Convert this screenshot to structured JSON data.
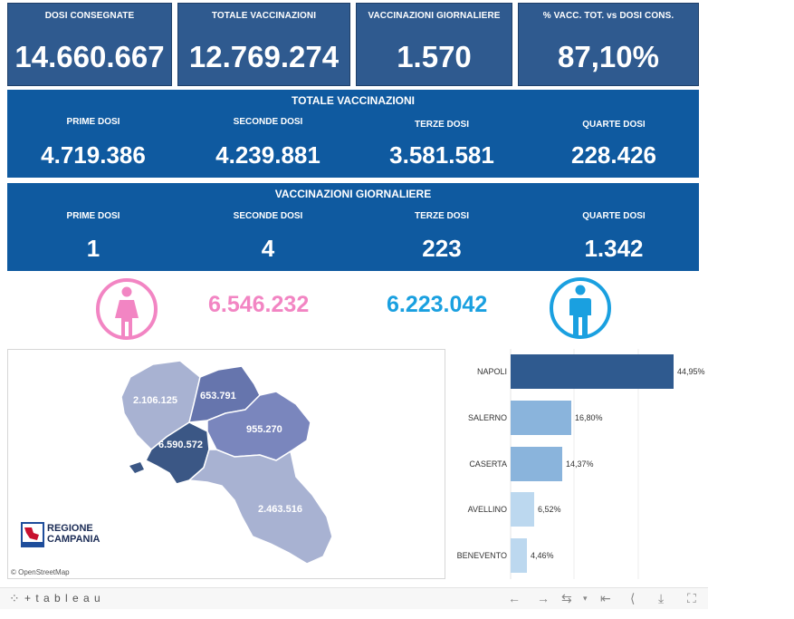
{
  "kpis": [
    {
      "label": "DOSI  CONSEGNATE",
      "value": "14.660.667"
    },
    {
      "label": "TOTALE VACCINAZIONI",
      "value": "12.769.274"
    },
    {
      "label": "VACCINAZIONI GIORNALIERE",
      "value": "1.570"
    },
    {
      "label": "% VACC. TOT. vs DOSI CONS.",
      "value": "87,10%"
    }
  ],
  "totale": {
    "title": "TOTALE VACCINAZIONI",
    "cols": [
      {
        "label": "PRIME DOSI",
        "value": "4.719.386"
      },
      {
        "label": "SECONDE DOSI",
        "value": "4.239.881"
      },
      {
        "label": "TERZE DOSI",
        "value": "3.581.581"
      },
      {
        "label": "QUARTE DOSI",
        "value": "228.426"
      }
    ]
  },
  "giornaliere": {
    "title": "VACCINAZIONI GIORNALIERE",
    "cols": [
      {
        "label": "PRIME DOSI",
        "value": "1"
      },
      {
        "label": "SECONDE DOSI",
        "value": "4"
      },
      {
        "label": "TERZE DOSI",
        "value": "223"
      },
      {
        "label": "QUARTE DOSI",
        "value": "1.342"
      }
    ]
  },
  "gender": {
    "female": {
      "value": "6.546.232",
      "color": "#f285c3"
    },
    "male": {
      "value": "6.223.042",
      "color": "#1aa0e0"
    }
  },
  "map": {
    "labels": {
      "caserta": "2.106.125",
      "benevento": "653.791",
      "avellino": "955.270",
      "napoli": "6.590.572",
      "salerno": "2.463.516"
    },
    "logo_line1": "REGIONE",
    "logo_line2": "CAMPANIA",
    "attribution": "© OpenStreetMap"
  },
  "chart_data": {
    "type": "bar",
    "orientation": "horizontal",
    "categories": [
      "NAPOLI",
      "SALERNO",
      "CASERTA",
      "AVELLINO",
      "BENEVENTO"
    ],
    "values": [
      44.95,
      16.8,
      14.37,
      6.52,
      4.46
    ],
    "value_labels": [
      "44,95%",
      "16,80%",
      "14,37%",
      "6,52%",
      "4,46%"
    ],
    "xlim": [
      0,
      50
    ],
    "colors": [
      "#2f5a8f",
      "#8ab4dc",
      "#8ab4dc",
      "#bcd8ef",
      "#bcd8ef"
    ]
  },
  "toolbar": {
    "brand": "+ t a b l e a u"
  }
}
